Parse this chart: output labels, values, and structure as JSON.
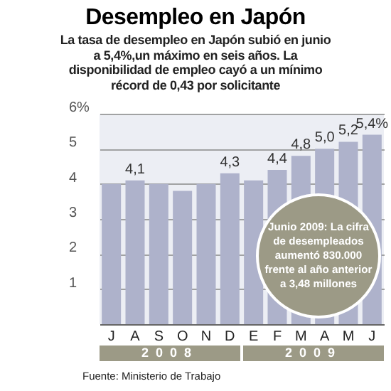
{
  "chart_data": {
    "type": "bar",
    "title": "Desempleo en Japón",
    "subtitle": "La tasa de desempleo en Japón subió en junio a 5,4%,un máximo en seis años. La disponibilidad de empleo cayó a un mínimo récord de 0,43 por solicitante",
    "categories": [
      "J",
      "A",
      "S",
      "O",
      "N",
      "D",
      "E",
      "F",
      "M",
      "A",
      "M",
      "J"
    ],
    "values": [
      4.0,
      4.1,
      4.0,
      3.8,
      4.0,
      4.3,
      4.1,
      4.4,
      4.8,
      5.0,
      5.2,
      5.4
    ],
    "value_labels": [
      null,
      "4,1",
      null,
      null,
      null,
      "4,3",
      null,
      "4,4",
      "4,8",
      "5,0",
      "5,2",
      "5,4%"
    ],
    "color": "#aeb2cb",
    "ylim": [
      0,
      6
    ],
    "yticks": [
      1,
      2,
      3,
      4,
      5,
      {
        "value": 6,
        "label": "6%"
      }
    ],
    "grid": "y",
    "annotations": [
      "2008",
      "2009",
      "Junio 2009: La cifra de desempleados aumentó 830.000 frente al año anterior a 3,48 millones",
      "Fuente: Ministerio de Trabajo"
    ]
  }
}
